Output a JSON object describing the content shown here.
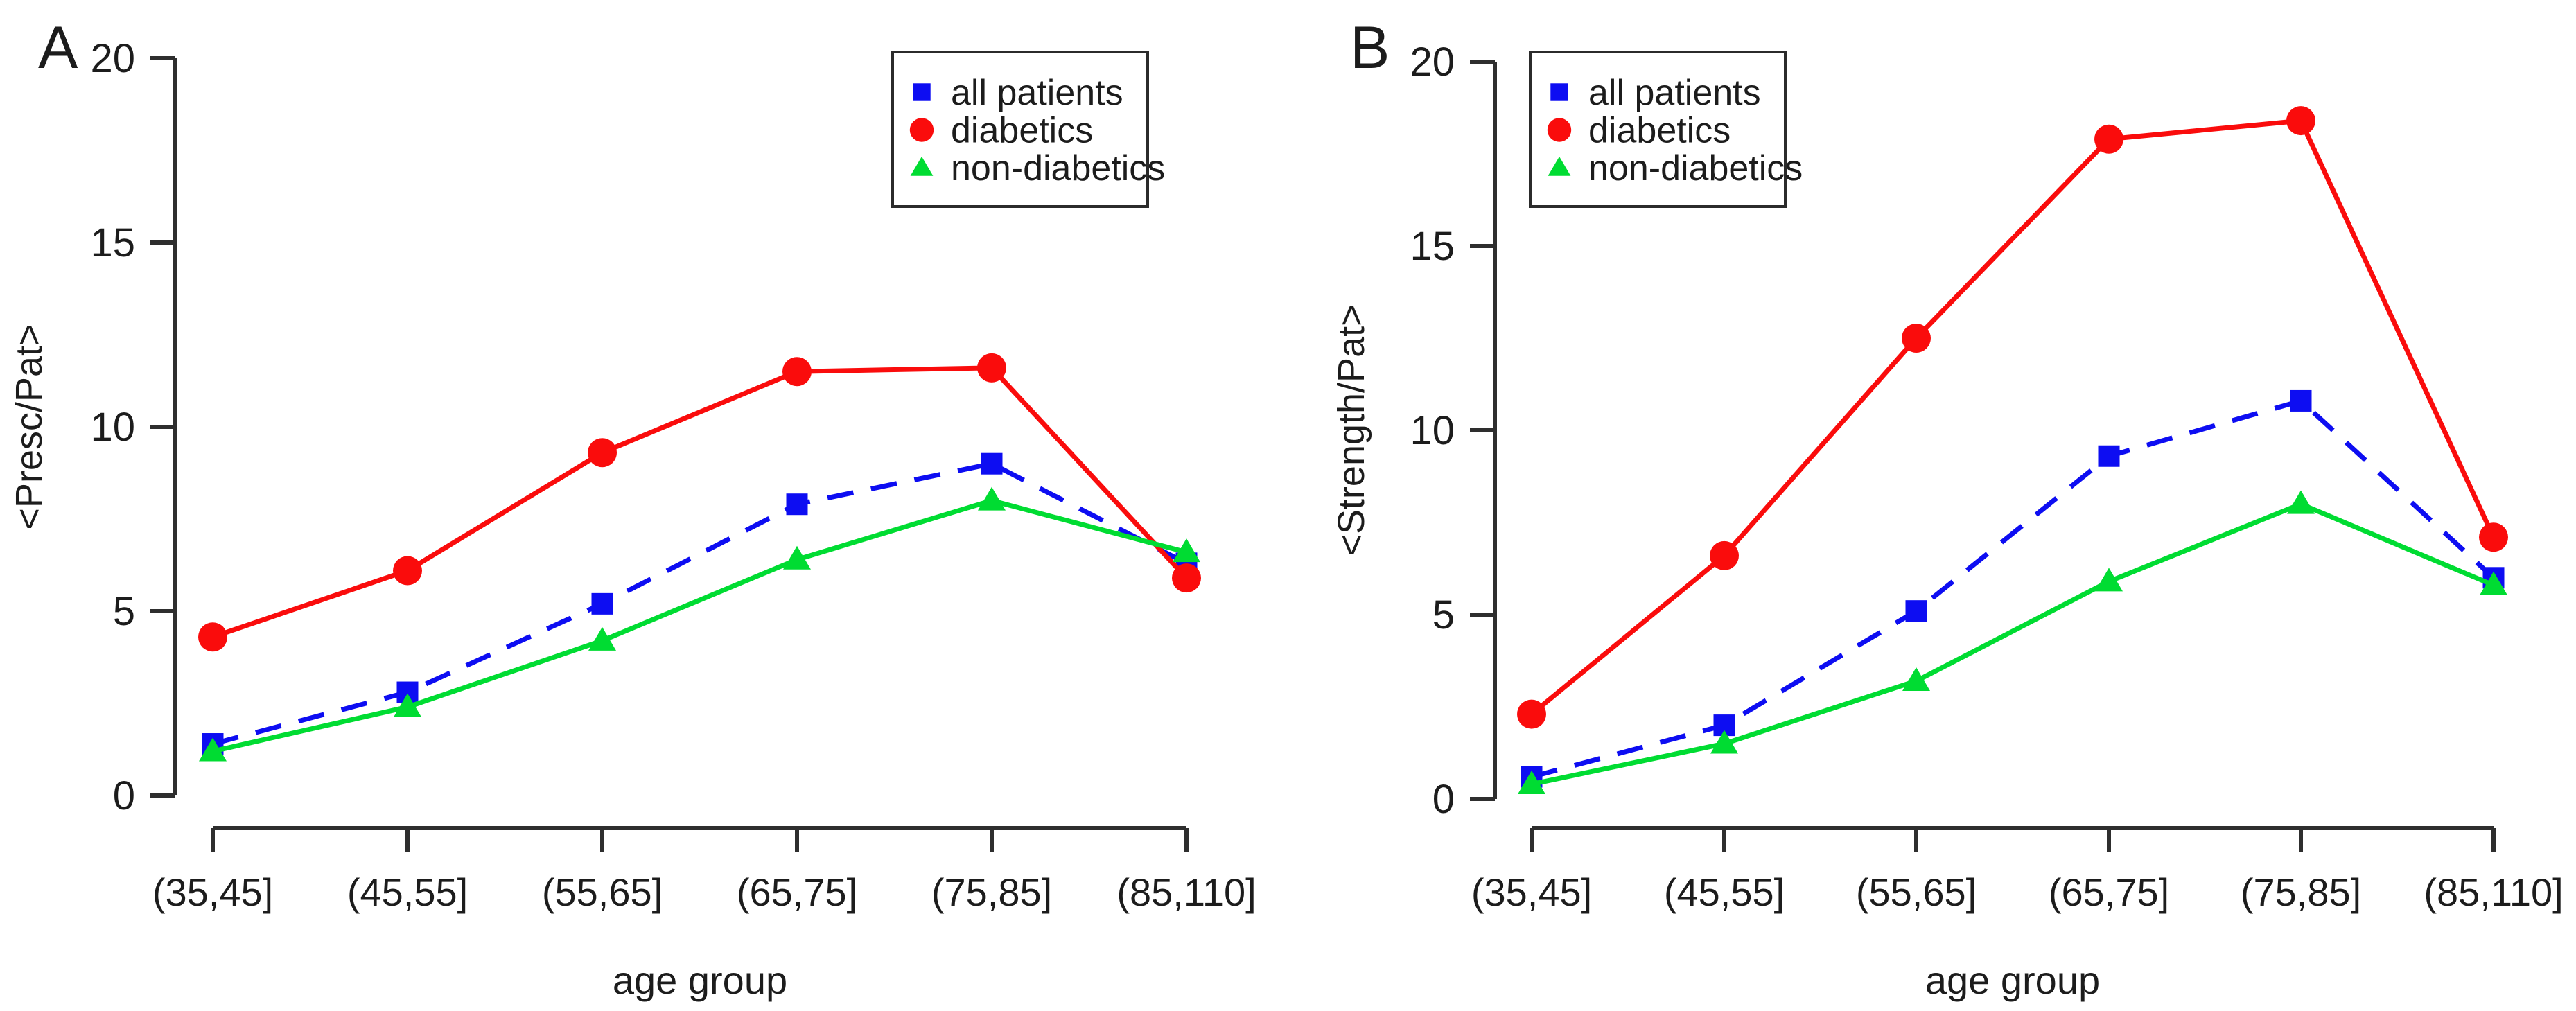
{
  "page": {
    "background": "#ffffff",
    "axis_color": "#2e2e2e",
    "text_color": "#1c1c1c"
  },
  "chart_data": [
    {
      "type": "line",
      "panel_letter": "A",
      "title": "",
      "xlabel": "age group",
      "ylabel": "<Presc/Pat>",
      "ylim": [
        0,
        20
      ],
      "yticks": [
        "0",
        "5",
        "10",
        "15",
        "20"
      ],
      "grid": false,
      "legend_position": "top-left",
      "categories": [
        "(35,45]",
        "(45,55]",
        "(55,65]",
        "(65,75]",
        "(75,85]",
        "(85,110]"
      ],
      "series": [
        {
          "name": "all patients",
          "color": "#0D0DF2",
          "marker": "square",
          "line_style": "dashed",
          "values": [
            1.4,
            2.8,
            5.2,
            7.9,
            9.0,
            6.3
          ]
        },
        {
          "name": "diabetics",
          "color": "#FA0C0C",
          "marker": "circle",
          "line_style": "solid",
          "values": [
            4.3,
            6.1,
            9.3,
            11.5,
            11.6,
            5.9
          ]
        },
        {
          "name": "non-diabetics",
          "color": "#00DC32",
          "marker": "triangle",
          "line_style": "solid",
          "values": [
            1.2,
            2.4,
            4.2,
            6.4,
            8.0,
            6.6
          ]
        }
      ]
    },
    {
      "type": "line",
      "panel_letter": "B",
      "title": "",
      "xlabel": "age group",
      "ylabel": "<Strength/Pat>",
      "ylim": [
        0,
        20
      ],
      "yticks": [
        "0",
        "5",
        "10",
        "15",
        "20"
      ],
      "grid": false,
      "legend_position": "top-left",
      "categories": [
        "(35,45]",
        "(45,55]",
        "(55,65]",
        "(65,75]",
        "(75,85]",
        "(85,110]"
      ],
      "series": [
        {
          "name": "all patients",
          "color": "#0D0DF2",
          "marker": "square",
          "line_style": "dashed",
          "values": [
            0.6,
            2.0,
            5.1,
            9.3,
            10.8,
            6.0
          ]
        },
        {
          "name": "diabetics",
          "color": "#FA0C0C",
          "marker": "circle",
          "line_style": "solid",
          "values": [
            2.3,
            6.6,
            12.5,
            17.9,
            18.4,
            7.1
          ]
        },
        {
          "name": "non-diabetics",
          "color": "#00DC32",
          "marker": "triangle",
          "line_style": "solid",
          "values": [
            0.4,
            1.5,
            3.2,
            5.9,
            8.0,
            5.8
          ]
        }
      ]
    }
  ]
}
